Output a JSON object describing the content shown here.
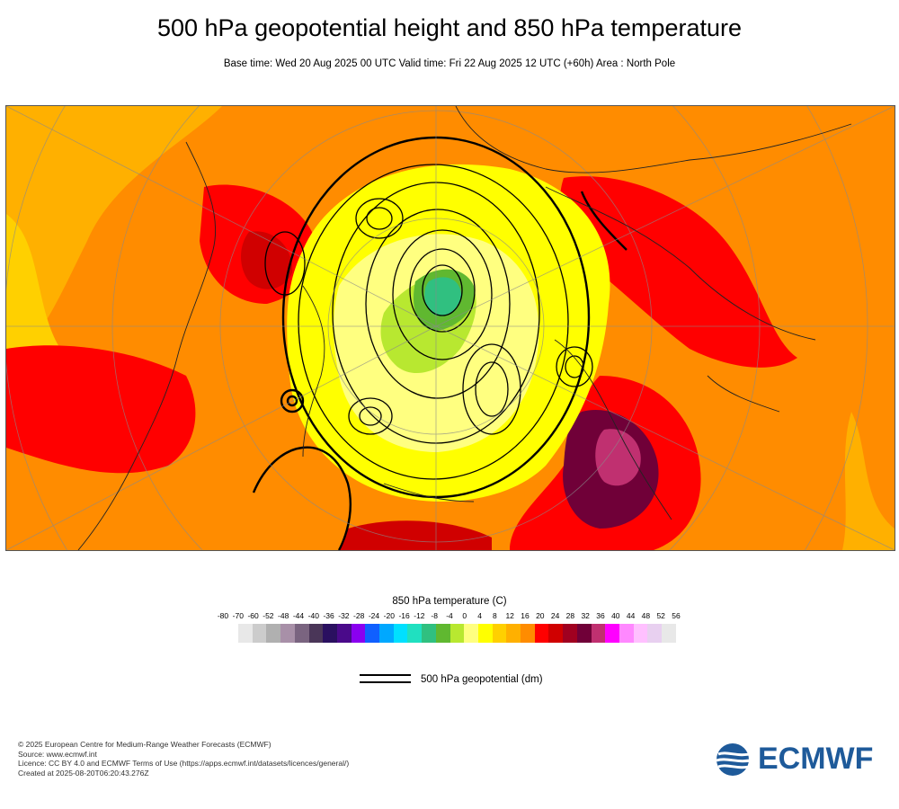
{
  "title": "500 hPa geopotential height and 850 hPa temperature",
  "subtitle": "Base time: Wed 20 Aug 2025 00 UTC Valid time: Fri 22 Aug 2025 12 UTC (+60h) Area : North Pole",
  "map": {
    "area": "North Pole",
    "projection": "polar-stereographic",
    "background_color": "#ff8c00"
  },
  "legend": {
    "title": "850 hPa temperature (C)",
    "labels": [
      "-80",
      "-70",
      "-60",
      "-52",
      "-48",
      "-44",
      "-40",
      "-36",
      "-32",
      "-28",
      "-24",
      "-20",
      "-16",
      "-12",
      "-8",
      "-4",
      "0",
      "4",
      "8",
      "12",
      "16",
      "20",
      "24",
      "28",
      "32",
      "36",
      "40",
      "44",
      "48",
      "52",
      "56"
    ],
    "colors": [
      "#e8e8e8",
      "#cccccc",
      "#b0b0b0",
      "#a890a8",
      "#7a6480",
      "#4a3658",
      "#2a1060",
      "#4a0a8a",
      "#8a00f0",
      "#1060ff",
      "#00a8ff",
      "#00e0ff",
      "#20e0c0",
      "#30c080",
      "#60b830",
      "#b8e830",
      "#ffff80",
      "#ffff00",
      "#ffd000",
      "#ffb000",
      "#ff8c00",
      "#ff0000",
      "#d00000",
      "#a00020",
      "#700038",
      "#c03070",
      "#ff00ff",
      "#ff88ff",
      "#ffc0ff",
      "#e8d0f0",
      "#e8e8e8"
    ]
  },
  "geo_legend": {
    "label": "500 hPa geopotential (dm)"
  },
  "footer": {
    "copyright": "© 2025 European Centre for Medium-Range Weather Forecasts (ECMWF)",
    "source": "Source: www.ecmwf.int",
    "licence": "Licence: CC BY 4.0 and ECMWF Terms of Use (https://apps.ecmwf.int/datasets/licences/general/)",
    "created": "Created at 2025-08-20T06:20:43.276Z"
  },
  "logo": {
    "text": "ECMWF",
    "color": "#1e5a9a"
  }
}
